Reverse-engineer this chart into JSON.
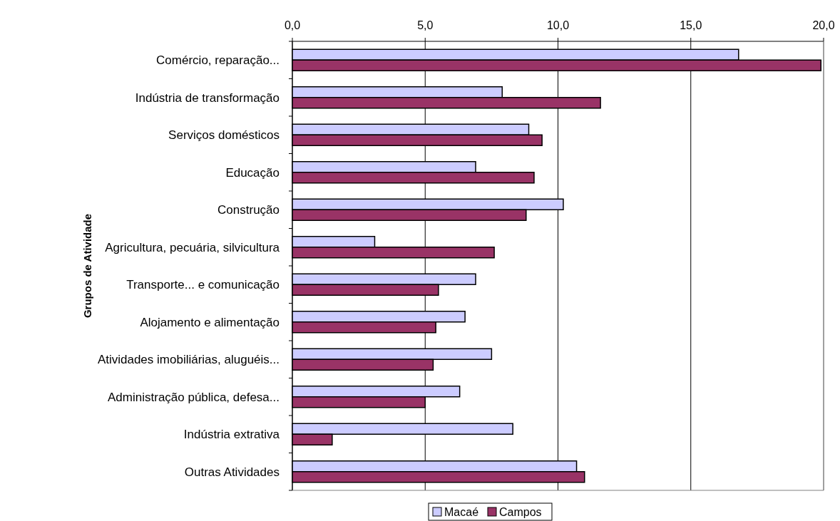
{
  "chart_data": {
    "type": "bar",
    "orientation": "horizontal",
    "ylabel": "Grupos de Atividade",
    "categories": [
      "Comércio, reparação...",
      "Indústria de transformação",
      "Serviços domésticos",
      "Educação",
      "Construção",
      "Agricultura, pecuária, silvicultura",
      "Transporte... e comunicação",
      "Alojamento e alimentação",
      "Atividades imobiliárias, aluguéis...",
      "Administração pública, defesa...",
      "Indústria extrativa",
      "Outras Atividades"
    ],
    "series": [
      {
        "name": "Macaé",
        "color": "#ccccff",
        "values": [
          16.8,
          7.9,
          8.9,
          6.9,
          10.2,
          3.1,
          6.9,
          6.5,
          7.5,
          6.3,
          8.3,
          10.7
        ]
      },
      {
        "name": "Campos",
        "color": "#993366",
        "values": [
          19.9,
          11.6,
          9.4,
          9.1,
          8.8,
          7.6,
          5.5,
          5.4,
          5.3,
          5.0,
          1.5,
          11.0
        ]
      }
    ],
    "xlim": [
      0,
      20
    ],
    "xticks": [
      {
        "value": 0,
        "label": "0,0"
      },
      {
        "value": 5,
        "label": "5,0"
      },
      {
        "value": 10,
        "label": "10,0"
      },
      {
        "value": 15,
        "label": "15,0"
      },
      {
        "value": 20,
        "label": "20,0"
      }
    ],
    "grid": "x",
    "legend": "bottom"
  }
}
